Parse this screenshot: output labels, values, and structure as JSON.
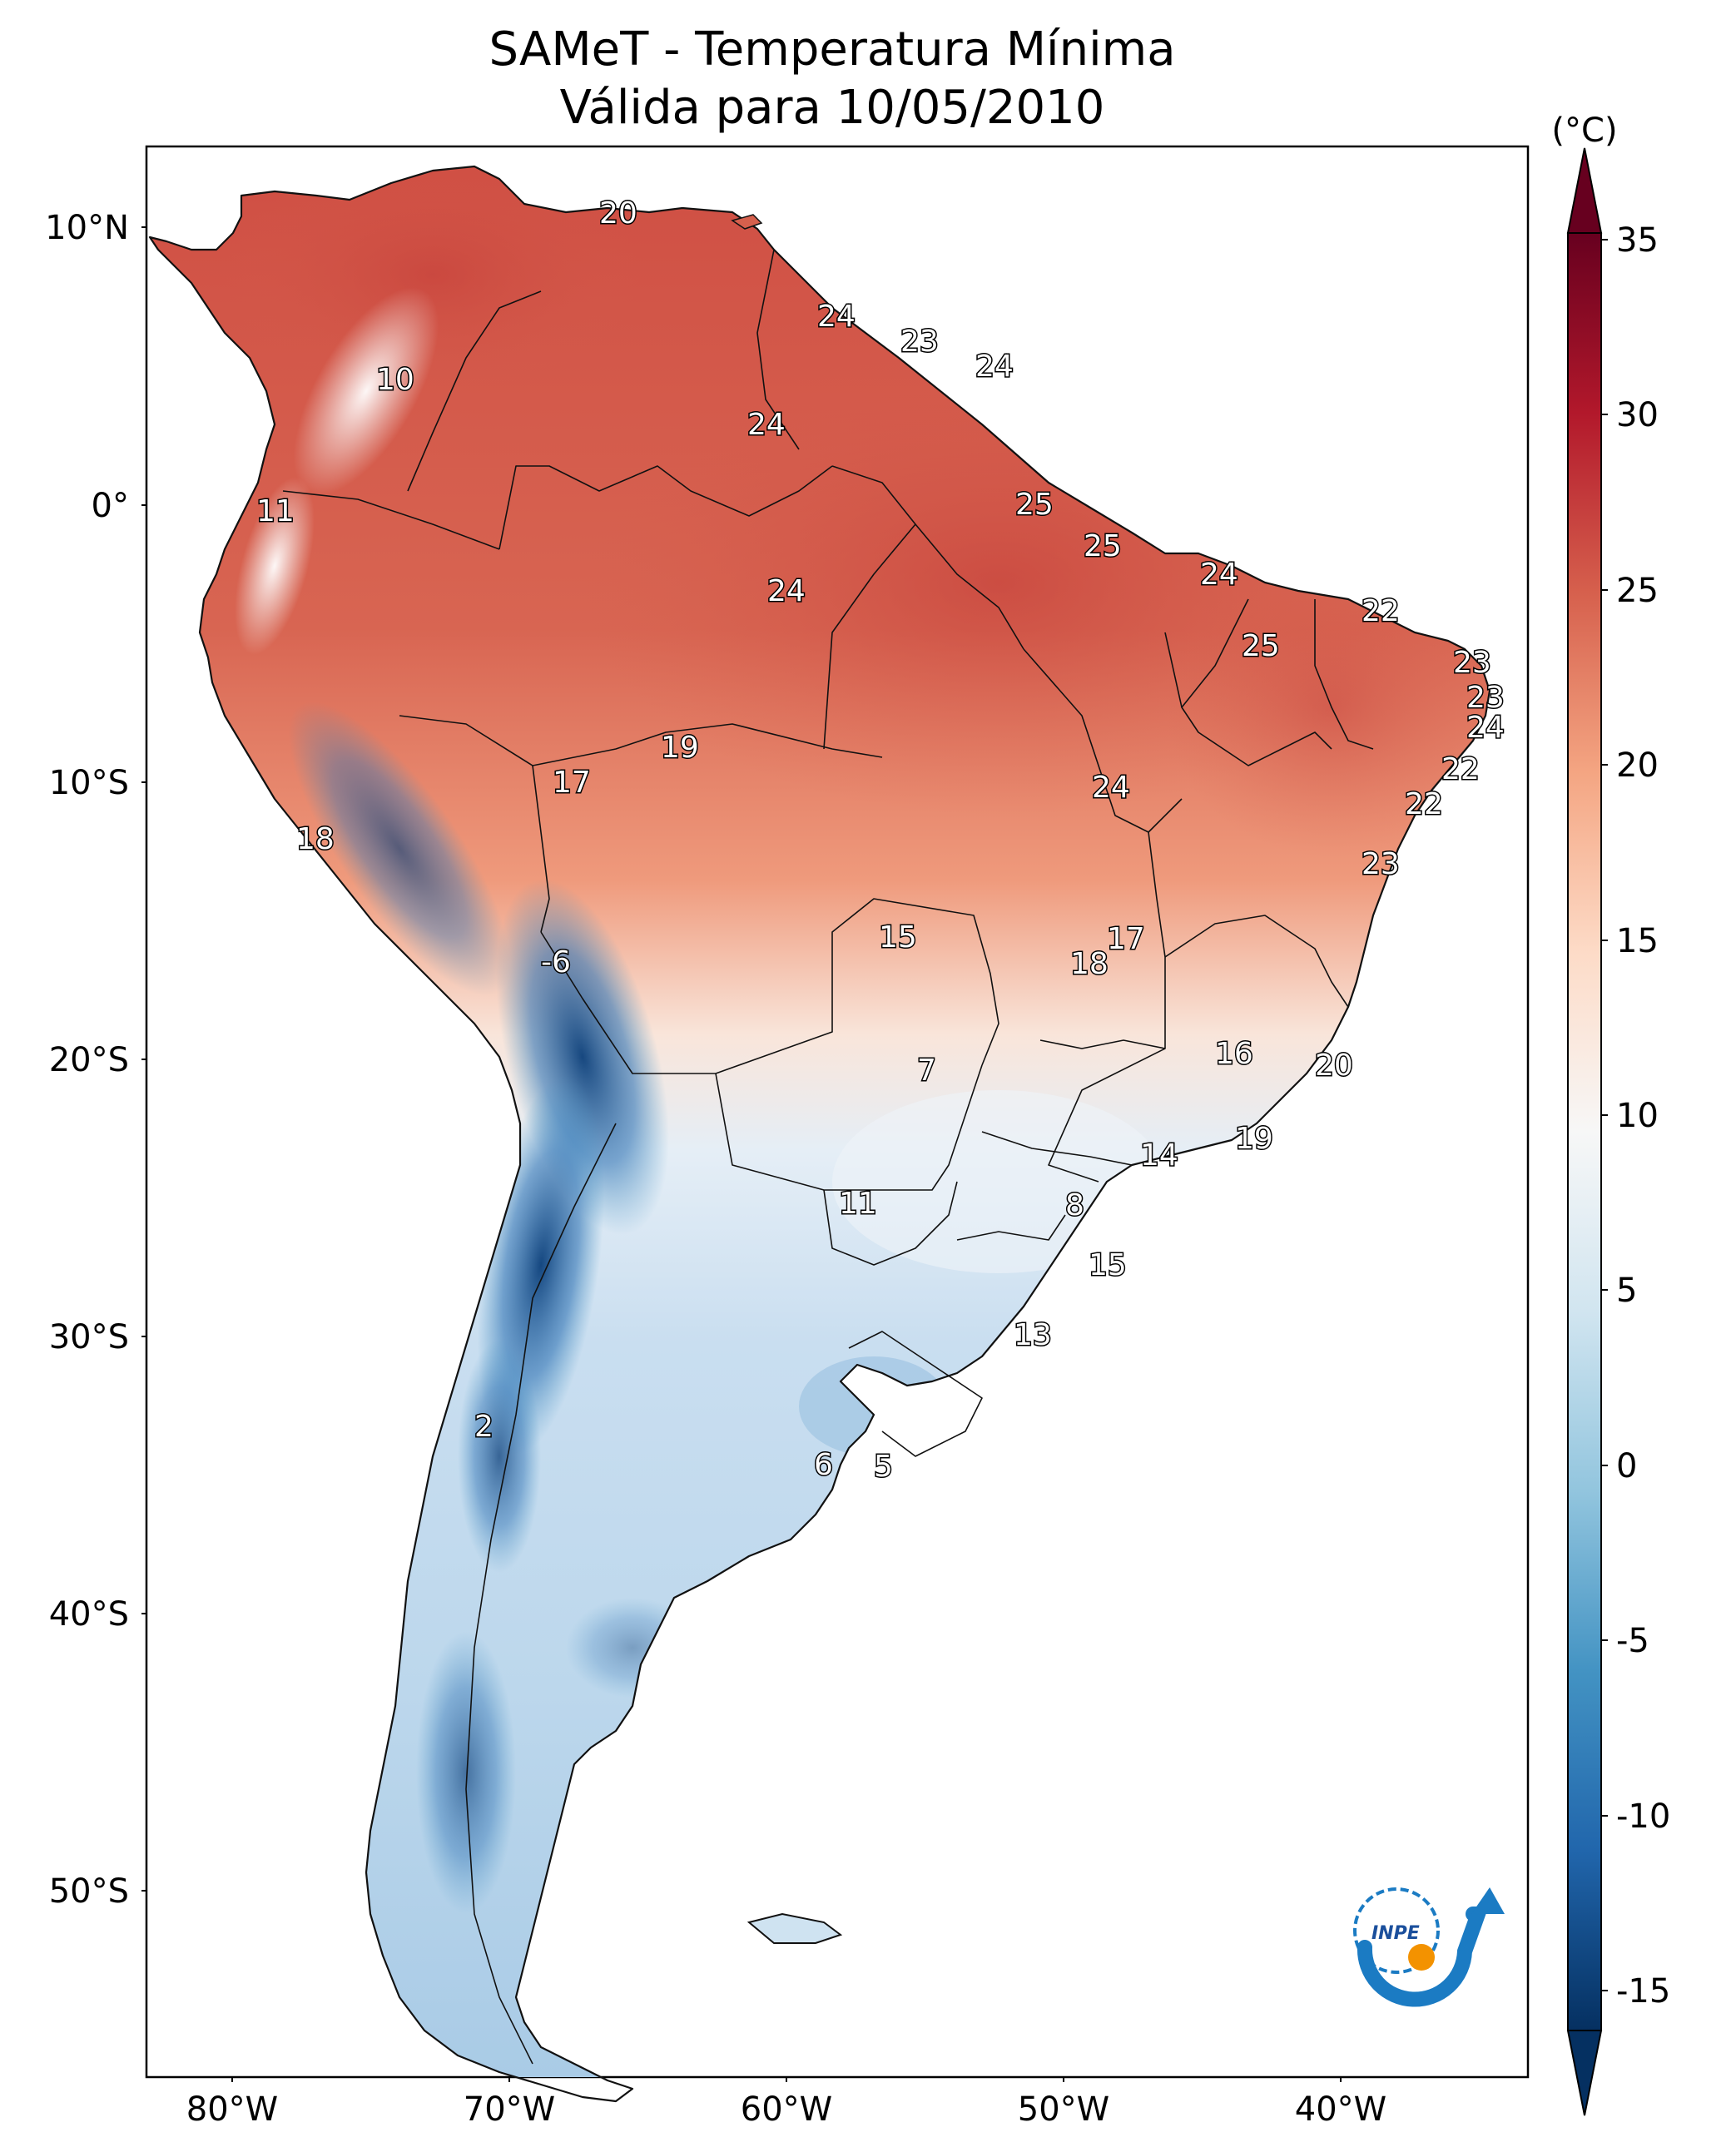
{
  "map": {
    "title_line1": "SAMeT - Temperatura Mínima",
    "title_line2": "Válida para 10/05/2010",
    "lat_ticks": [
      "10°N",
      "0°",
      "10°S",
      "20°S",
      "30°S",
      "40°S",
      "50°S"
    ],
    "lon_ticks": [
      "80°W",
      "70°W",
      "60°W",
      "50°W",
      "40°W"
    ],
    "value_labels": [
      "20",
      "10",
      "11",
      "24",
      "23",
      "24",
      "24",
      "25",
      "25",
      "24",
      "24",
      "22",
      "25",
      "23",
      "23",
      "24",
      "22",
      "22",
      "23",
      "18",
      "17",
      "19",
      "24",
      "-6",
      "15",
      "17",
      "18",
      "7",
      "16",
      "20",
      "14",
      "19",
      "11",
      "8",
      "15",
      "13",
      "2",
      "6",
      "5"
    ],
    "logo_text": "INPE"
  },
  "colorbar": {
    "unit": "(°C)",
    "ticks": [
      "35",
      "30",
      "25",
      "20",
      "15",
      "10",
      "5",
      "0",
      "-5",
      "-10",
      "-15"
    ],
    "colors": [
      "#053061",
      "#2166ac",
      "#4393c3",
      "#92c5de",
      "#d1e5f0",
      "#f7f7f7",
      "#fddbc7",
      "#f4a582",
      "#d6604d",
      "#b2182b",
      "#67001f"
    ]
  }
}
